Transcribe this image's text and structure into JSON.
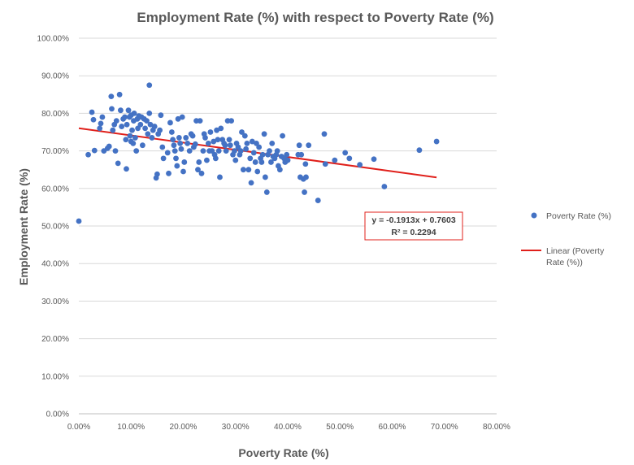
{
  "chart_data": {
    "type": "scatter",
    "title": "Employment Rate (%) with respect to Poverty Rate (%)",
    "xlabel": "Poverty Rate (%)",
    "ylabel": "Employment Rate (%)",
    "xlim": [
      0,
      0.8
    ],
    "ylim": [
      0,
      1.0
    ],
    "x_ticks": [
      "0.00%",
      "10.00%",
      "20.00%",
      "30.00%",
      "40.00%",
      "50.00%",
      "60.00%",
      "70.00%",
      "80.00%"
    ],
    "y_ticks": [
      "0.00%",
      "10.00%",
      "20.00%",
      "30.00%",
      "40.00%",
      "50.00%",
      "60.00%",
      "70.00%",
      "80.00%",
      "90.00%",
      "100.00%"
    ],
    "grid": "horizontal",
    "legend_position": "right",
    "colors": {
      "points": "#4472c4",
      "trendline": "#e0201b",
      "equation_border": "#e0201b",
      "text": "#595959"
    },
    "series": [
      {
        "name": "Poverty Rate (%)",
        "points": [
          [
            0.0,
            0.513
          ],
          [
            0.018,
            0.69
          ],
          [
            0.025,
            0.803
          ],
          [
            0.028,
            0.783
          ],
          [
            0.03,
            0.701
          ],
          [
            0.04,
            0.76
          ],
          [
            0.042,
            0.773
          ],
          [
            0.045,
            0.79
          ],
          [
            0.048,
            0.7
          ],
          [
            0.055,
            0.707
          ],
          [
            0.058,
            0.712
          ],
          [
            0.062,
            0.845
          ],
          [
            0.063,
            0.812
          ],
          [
            0.065,
            0.755
          ],
          [
            0.068,
            0.77
          ],
          [
            0.07,
            0.7
          ],
          [
            0.072,
            0.78
          ],
          [
            0.075,
            0.667
          ],
          [
            0.078,
            0.85
          ],
          [
            0.08,
            0.808
          ],
          [
            0.082,
            0.765
          ],
          [
            0.085,
            0.785
          ],
          [
            0.088,
            0.79
          ],
          [
            0.09,
            0.73
          ],
          [
            0.091,
            0.652
          ],
          [
            0.092,
            0.77
          ],
          [
            0.095,
            0.808
          ],
          [
            0.097,
            0.79
          ],
          [
            0.098,
            0.74
          ],
          [
            0.1,
            0.795
          ],
          [
            0.1,
            0.725
          ],
          [
            0.102,
            0.755
          ],
          [
            0.104,
            0.72
          ],
          [
            0.105,
            0.78
          ],
          [
            0.106,
            0.8
          ],
          [
            0.108,
            0.735
          ],
          [
            0.11,
            0.7
          ],
          [
            0.112,
            0.785
          ],
          [
            0.113,
            0.76
          ],
          [
            0.115,
            0.793
          ],
          [
            0.118,
            0.77
          ],
          [
            0.12,
            0.79
          ],
          [
            0.122,
            0.715
          ],
          [
            0.125,
            0.785
          ],
          [
            0.127,
            0.76
          ],
          [
            0.13,
            0.78
          ],
          [
            0.132,
            0.745
          ],
          [
            0.135,
            0.875
          ],
          [
            0.135,
            0.8
          ],
          [
            0.137,
            0.77
          ],
          [
            0.14,
            0.735
          ],
          [
            0.142,
            0.755
          ],
          [
            0.145,
            0.765
          ],
          [
            0.148,
            0.628
          ],
          [
            0.15,
            0.638
          ],
          [
            0.152,
            0.745
          ],
          [
            0.155,
            0.755
          ],
          [
            0.157,
            0.795
          ],
          [
            0.16,
            0.71
          ],
          [
            0.162,
            0.68
          ],
          [
            0.17,
            0.695
          ],
          [
            0.172,
            0.64
          ],
          [
            0.175,
            0.775
          ],
          [
            0.178,
            0.75
          ],
          [
            0.18,
            0.73
          ],
          [
            0.182,
            0.715
          ],
          [
            0.184,
            0.7
          ],
          [
            0.186,
            0.68
          ],
          [
            0.188,
            0.66
          ],
          [
            0.19,
            0.785
          ],
          [
            0.192,
            0.735
          ],
          [
            0.194,
            0.72
          ],
          [
            0.196,
            0.705
          ],
          [
            0.198,
            0.79
          ],
          [
            0.2,
            0.645
          ],
          [
            0.202,
            0.67
          ],
          [
            0.205,
            0.735
          ],
          [
            0.208,
            0.72
          ],
          [
            0.212,
            0.7
          ],
          [
            0.215,
            0.745
          ],
          [
            0.218,
            0.74
          ],
          [
            0.22,
            0.71
          ],
          [
            0.223,
            0.718
          ],
          [
            0.225,
            0.78
          ],
          [
            0.228,
            0.65
          ],
          [
            0.23,
            0.67
          ],
          [
            0.232,
            0.78
          ],
          [
            0.235,
            0.64
          ],
          [
            0.238,
            0.7
          ],
          [
            0.24,
            0.745
          ],
          [
            0.242,
            0.735
          ],
          [
            0.245,
            0.675
          ],
          [
            0.248,
            0.72
          ],
          [
            0.25,
            0.7
          ],
          [
            0.252,
            0.75
          ],
          [
            0.255,
            0.7
          ],
          [
            0.258,
            0.725
          ],
          [
            0.26,
            0.69
          ],
          [
            0.262,
            0.68
          ],
          [
            0.264,
            0.755
          ],
          [
            0.266,
            0.73
          ],
          [
            0.268,
            0.7
          ],
          [
            0.27,
            0.63
          ],
          [
            0.272,
            0.76
          ],
          [
            0.275,
            0.73
          ],
          [
            0.278,
            0.72
          ],
          [
            0.28,
            0.715
          ],
          [
            0.282,
            0.7
          ],
          [
            0.285,
            0.78
          ],
          [
            0.288,
            0.73
          ],
          [
            0.29,
            0.715
          ],
          [
            0.292,
            0.78
          ],
          [
            0.295,
            0.69
          ],
          [
            0.298,
            0.7
          ],
          [
            0.3,
            0.675
          ],
          [
            0.302,
            0.72
          ],
          [
            0.305,
            0.71
          ],
          [
            0.308,
            0.69
          ],
          [
            0.31,
            0.7
          ],
          [
            0.312,
            0.75
          ],
          [
            0.315,
            0.65
          ],
          [
            0.318,
            0.74
          ],
          [
            0.32,
            0.705
          ],
          [
            0.322,
            0.72
          ],
          [
            0.325,
            0.65
          ],
          [
            0.328,
            0.68
          ],
          [
            0.33,
            0.615
          ],
          [
            0.332,
            0.725
          ],
          [
            0.335,
            0.695
          ],
          [
            0.338,
            0.67
          ],
          [
            0.34,
            0.72
          ],
          [
            0.342,
            0.645
          ],
          [
            0.345,
            0.71
          ],
          [
            0.348,
            0.68
          ],
          [
            0.35,
            0.67
          ],
          [
            0.352,
            0.69
          ],
          [
            0.355,
            0.745
          ],
          [
            0.357,
            0.63
          ],
          [
            0.36,
            0.59
          ],
          [
            0.362,
            0.69
          ],
          [
            0.365,
            0.7
          ],
          [
            0.368,
            0.67
          ],
          [
            0.37,
            0.72
          ],
          [
            0.372,
            0.685
          ],
          [
            0.375,
            0.68
          ],
          [
            0.378,
            0.69
          ],
          [
            0.38,
            0.7
          ],
          [
            0.382,
            0.66
          ],
          [
            0.385,
            0.65
          ],
          [
            0.388,
            0.685
          ],
          [
            0.39,
            0.74
          ],
          [
            0.393,
            0.68
          ],
          [
            0.395,
            0.67
          ],
          [
            0.398,
            0.69
          ],
          [
            0.4,
            0.675
          ],
          [
            0.42,
            0.69
          ],
          [
            0.422,
            0.715
          ],
          [
            0.424,
            0.63
          ],
          [
            0.426,
            0.69
          ],
          [
            0.43,
            0.625
          ],
          [
            0.432,
            0.59
          ],
          [
            0.434,
            0.665
          ],
          [
            0.435,
            0.63
          ],
          [
            0.44,
            0.715
          ],
          [
            0.458,
            0.568
          ],
          [
            0.47,
            0.745
          ],
          [
            0.472,
            0.665
          ],
          [
            0.49,
            0.675
          ],
          [
            0.51,
            0.695
          ],
          [
            0.518,
            0.68
          ],
          [
            0.538,
            0.663
          ],
          [
            0.565,
            0.678
          ],
          [
            0.585,
            0.605
          ],
          [
            0.652,
            0.702
          ],
          [
            0.685,
            0.725
          ]
        ]
      }
    ],
    "trendline": {
      "name": "Linear (Poverty Rate (%))",
      "slope": -0.1913,
      "intercept": 0.7603,
      "x_range": [
        0,
        0.685
      ],
      "equation": "y = -0.1913x + 0.7603",
      "r_squared": "R² = 0.2294"
    },
    "legend": {
      "series_label": "Poverty Rate (%)",
      "trend_label_line1": "Linear (Poverty",
      "trend_label_line2": "Rate (%))"
    }
  }
}
